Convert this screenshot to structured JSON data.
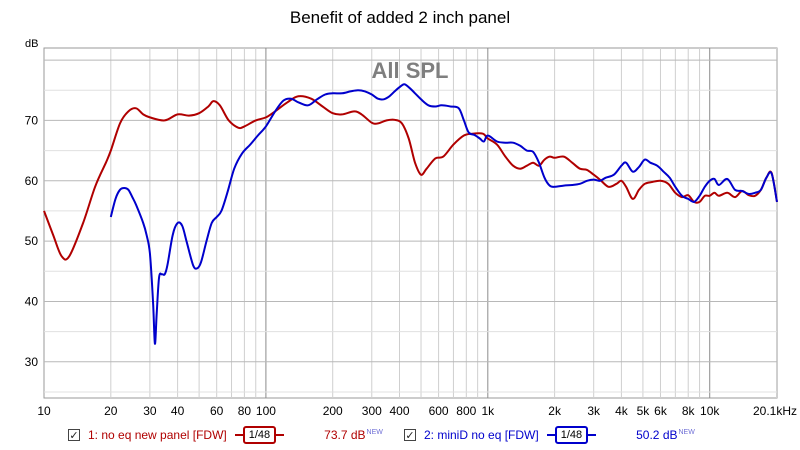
{
  "chart_data": {
    "type": "line",
    "title": "Benefit of added 2 inch panel",
    "ylabel": "dB",
    "watermark": "All SPL",
    "x_scale": "log",
    "xlim": [
      10,
      20100
    ],
    "ylim": [
      24,
      82
    ],
    "grid": true,
    "x_ticks": [
      {
        "value": 10,
        "label": "10"
      },
      {
        "value": 20,
        "label": "20"
      },
      {
        "value": 30,
        "label": "30"
      },
      {
        "value": 40,
        "label": "40"
      },
      {
        "value": 60,
        "label": "60"
      },
      {
        "value": 80,
        "label": "80"
      },
      {
        "value": 100,
        "label": "100"
      },
      {
        "value": 200,
        "label": "200"
      },
      {
        "value": 300,
        "label": "300"
      },
      {
        "value": 400,
        "label": "400"
      },
      {
        "value": 600,
        "label": "600"
      },
      {
        "value": 800,
        "label": "800"
      },
      {
        "value": 1000,
        "label": "1k"
      },
      {
        "value": 2000,
        "label": "2k"
      },
      {
        "value": 3000,
        "label": "3k"
      },
      {
        "value": 4000,
        "label": "4k"
      },
      {
        "value": 5000,
        "label": "5k"
      },
      {
        "value": 6000,
        "label": "6k"
      },
      {
        "value": 8000,
        "label": "8k"
      },
      {
        "value": 10000,
        "label": "10k"
      },
      {
        "value": 20100,
        "label": "20.1kHz"
      }
    ],
    "y_ticks": [
      30,
      40,
      50,
      60,
      70
    ],
    "series": [
      {
        "name": "1: no eq new panel [FDW]",
        "color": "#b00000",
        "smoothing": "1/48",
        "level": "73.7 dB",
        "points": [
          [
            10,
            55
          ],
          [
            11,
            51
          ],
          [
            12,
            47.5
          ],
          [
            13,
            47.5
          ],
          [
            15,
            53
          ],
          [
            17,
            59
          ],
          [
            19,
            63
          ],
          [
            20,
            65
          ],
          [
            22,
            69.5
          ],
          [
            24,
            71.5
          ],
          [
            26,
            72
          ],
          [
            28,
            71
          ],
          [
            30,
            70.5
          ],
          [
            35,
            70
          ],
          [
            40,
            71
          ],
          [
            45,
            70.8
          ],
          [
            50,
            71.2
          ],
          [
            55,
            72.3
          ],
          [
            58,
            73.2
          ],
          [
            62,
            72.5
          ],
          [
            68,
            70
          ],
          [
            75,
            68.8
          ],
          [
            80,
            69
          ],
          [
            90,
            70
          ],
          [
            100,
            70.5
          ],
          [
            110,
            71.5
          ],
          [
            125,
            73
          ],
          [
            140,
            74
          ],
          [
            160,
            73.6
          ],
          [
            180,
            72.3
          ],
          [
            200,
            71.2
          ],
          [
            220,
            71
          ],
          [
            250,
            71.5
          ],
          [
            270,
            71
          ],
          [
            300,
            69.6
          ],
          [
            320,
            69.5
          ],
          [
            350,
            70
          ],
          [
            380,
            70.1
          ],
          [
            410,
            69.5
          ],
          [
            440,
            67
          ],
          [
            470,
            63
          ],
          [
            500,
            61
          ],
          [
            530,
            62
          ],
          [
            580,
            63.7
          ],
          [
            630,
            64
          ],
          [
            700,
            66
          ],
          [
            780,
            67.5
          ],
          [
            850,
            67.8
          ],
          [
            950,
            67.8
          ],
          [
            1000,
            67
          ],
          [
            1100,
            66
          ],
          [
            1200,
            64
          ],
          [
            1300,
            62.5
          ],
          [
            1400,
            62
          ],
          [
            1500,
            62.5
          ],
          [
            1600,
            63
          ],
          [
            1700,
            62.5
          ],
          [
            1800,
            63.5
          ],
          [
            1900,
            64
          ],
          [
            2000,
            63.8
          ],
          [
            2200,
            64
          ],
          [
            2400,
            63
          ],
          [
            2600,
            62
          ],
          [
            2800,
            61.8
          ],
          [
            3000,
            61
          ],
          [
            3200,
            60.2
          ],
          [
            3500,
            59
          ],
          [
            3800,
            59.5
          ],
          [
            4000,
            60
          ],
          [
            4200,
            59
          ],
          [
            4500,
            57
          ],
          [
            4800,
            58.5
          ],
          [
            5100,
            59.5
          ],
          [
            5500,
            59.8
          ],
          [
            6000,
            60
          ],
          [
            6500,
            59.5
          ],
          [
            7000,
            58
          ],
          [
            7500,
            57.3
          ],
          [
            8000,
            57.6
          ],
          [
            8500,
            56.5
          ],
          [
            9000,
            56.5
          ],
          [
            9500,
            57.5
          ],
          [
            10000,
            57.5
          ],
          [
            10500,
            58
          ],
          [
            11000,
            57.5
          ],
          [
            12000,
            58
          ],
          [
            13000,
            57.3
          ],
          [
            14000,
            58.3
          ],
          [
            15000,
            57.6
          ],
          [
            16000,
            57.5
          ],
          [
            17000,
            58.5
          ],
          [
            18000,
            60.5
          ],
          [
            19000,
            61.3
          ],
          [
            20100,
            56.5
          ]
        ]
      },
      {
        "name": "2: miniD no eq [FDW]",
        "color": "#0000cc",
        "smoothing": "1/48",
        "level": "50.2 dB",
        "points": [
          [
            20,
            54
          ],
          [
            21,
            57
          ],
          [
            22,
            58.5
          ],
          [
            23,
            58.8
          ],
          [
            24,
            58.5
          ],
          [
            25,
            57.3
          ],
          [
            26,
            56
          ],
          [
            28,
            53
          ],
          [
            29,
            51
          ],
          [
            30,
            48
          ],
          [
            31,
            40
          ],
          [
            31.6,
            33
          ],
          [
            32.2,
            38
          ],
          [
            33,
            44
          ],
          [
            34,
            44.5
          ],
          [
            35,
            44.5
          ],
          [
            36,
            46
          ],
          [
            38,
            51
          ],
          [
            40,
            53
          ],
          [
            42,
            52.5
          ],
          [
            44,
            49.8
          ],
          [
            47,
            46
          ],
          [
            49,
            45.5
          ],
          [
            51,
            46.5
          ],
          [
            54,
            50
          ],
          [
            57,
            53
          ],
          [
            60,
            54
          ],
          [
            63,
            55
          ],
          [
            67,
            58
          ],
          [
            72,
            62
          ],
          [
            78,
            64.5
          ],
          [
            85,
            66
          ],
          [
            92,
            67.5
          ],
          [
            100,
            69
          ],
          [
            110,
            71.5
          ],
          [
            120,
            73.3
          ],
          [
            130,
            73.6
          ],
          [
            140,
            73
          ],
          [
            155,
            72.5
          ],
          [
            170,
            73.5
          ],
          [
            185,
            74.3
          ],
          [
            200,
            74.5
          ],
          [
            220,
            74.5
          ],
          [
            240,
            74.8
          ],
          [
            260,
            75
          ],
          [
            280,
            74.8
          ],
          [
            300,
            74.3
          ],
          [
            320,
            73.6
          ],
          [
            340,
            73.5
          ],
          [
            360,
            74
          ],
          [
            380,
            74.8
          ],
          [
            400,
            75.5
          ],
          [
            420,
            76
          ],
          [
            440,
            75.5
          ],
          [
            470,
            74.5
          ],
          [
            500,
            73.5
          ],
          [
            540,
            72.5
          ],
          [
            580,
            72.3
          ],
          [
            620,
            72.5
          ],
          [
            680,
            72.3
          ],
          [
            740,
            72
          ],
          [
            780,
            70
          ],
          [
            820,
            68
          ],
          [
            870,
            67.6
          ],
          [
            920,
            67
          ],
          [
            960,
            66.5
          ],
          [
            1000,
            67.5
          ],
          [
            1100,
            66.5
          ],
          [
            1200,
            66.3
          ],
          [
            1300,
            66.3
          ],
          [
            1400,
            65.8
          ],
          [
            1500,
            65
          ],
          [
            1600,
            64.8
          ],
          [
            1700,
            63
          ],
          [
            1800,
            60.5
          ],
          [
            1900,
            59.2
          ],
          [
            2000,
            59
          ],
          [
            2200,
            59.2
          ],
          [
            2400,
            59.3
          ],
          [
            2600,
            59.5
          ],
          [
            2800,
            60
          ],
          [
            3000,
            60.2
          ],
          [
            3200,
            60
          ],
          [
            3400,
            60.5
          ],
          [
            3700,
            61
          ],
          [
            4000,
            62.5
          ],
          [
            4200,
            63
          ],
          [
            4500,
            61.5
          ],
          [
            4800,
            62.3
          ],
          [
            5100,
            63.5
          ],
          [
            5400,
            63
          ],
          [
            5800,
            62.5
          ],
          [
            6200,
            61.5
          ],
          [
            6600,
            60.5
          ],
          [
            7000,
            59
          ],
          [
            7500,
            57.5
          ],
          [
            8000,
            57
          ],
          [
            8500,
            56.5
          ],
          [
            9000,
            57.5
          ],
          [
            9500,
            59
          ],
          [
            10000,
            60
          ],
          [
            10500,
            60.3
          ],
          [
            11000,
            59.3
          ],
          [
            12000,
            60.3
          ],
          [
            13000,
            58.5
          ],
          [
            14000,
            58.3
          ],
          [
            15000,
            57.8
          ],
          [
            16000,
            58
          ],
          [
            17000,
            58.5
          ],
          [
            18000,
            60.5
          ],
          [
            19000,
            61.2
          ],
          [
            20100,
            56.5
          ]
        ]
      }
    ]
  },
  "legend": {
    "items": [
      {
        "checkbox": "✓",
        "label": "1: no eq new panel [FDW]",
        "smoothing": "1/48",
        "level": "73.7 dB",
        "level_tag": "NEW"
      },
      {
        "checkbox": "✓",
        "label": "2: miniD no eq [FDW]",
        "smoothing": "1/48",
        "level": "50.2 dB",
        "level_tag": "NEW"
      }
    ]
  }
}
